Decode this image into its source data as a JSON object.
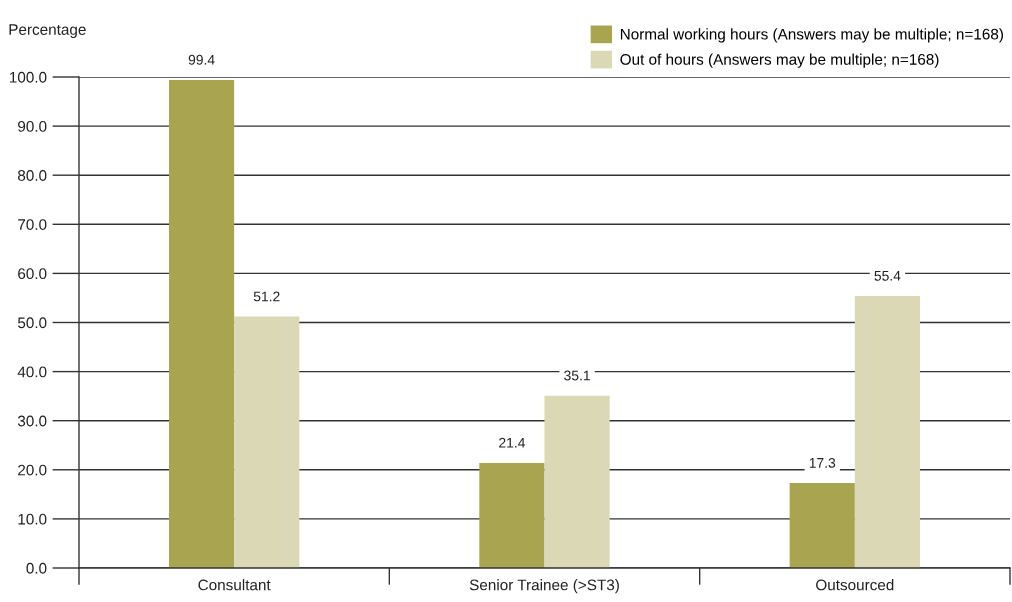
{
  "chart_data": {
    "type": "bar",
    "ylabel": "Percentage",
    "categories": [
      "Consultant",
      "Senior Trainee (>ST3)",
      "Outsourced"
    ],
    "series": [
      {
        "name": "Normal working hours (Answers may be multiple; n=168)",
        "color": "#a9a44f",
        "values": [
          99.4,
          21.4,
          17.3
        ]
      },
      {
        "name": "Out of hours (Answers may be multiple; n=168)",
        "color": "#dad8b5",
        "values": [
          51.2,
          35.1,
          55.4
        ]
      }
    ],
    "ylim": [
      0,
      100
    ],
    "yticks": [
      {
        "value": 0,
        "label": "0.0"
      },
      {
        "value": 10,
        "label": "10.0"
      },
      {
        "value": 20,
        "label": "20.0"
      },
      {
        "value": 30,
        "label": "30.0"
      },
      {
        "value": 40,
        "label": "40.0"
      },
      {
        "value": 50,
        "label": "50.0"
      },
      {
        "value": 60,
        "label": "60.0"
      },
      {
        "value": 70,
        "label": "70.0"
      },
      {
        "value": 80,
        "label": "80.0"
      },
      {
        "value": 90,
        "label": "90.0"
      },
      {
        "value": 100,
        "label": "100.0"
      }
    ],
    "grid": "y",
    "legend": "top right",
    "data_labels": true
  }
}
